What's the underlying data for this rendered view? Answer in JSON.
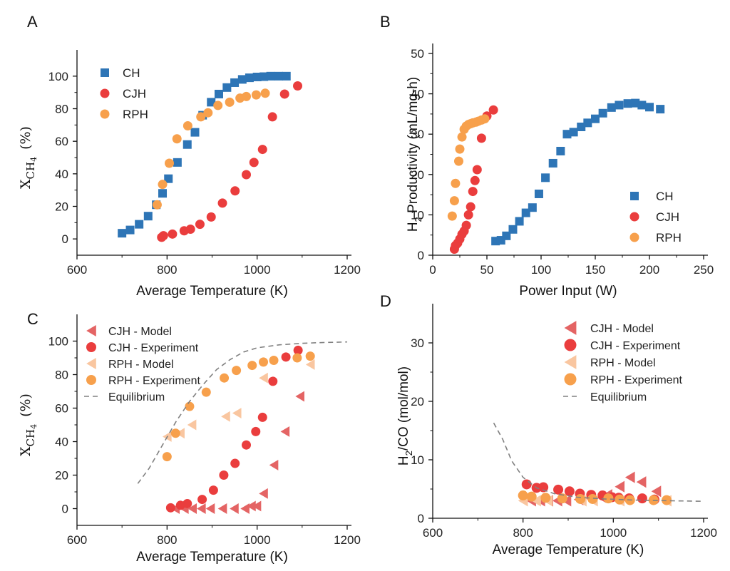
{
  "colors": {
    "CH": "#2e75b6",
    "CJH": "#ea3d3d",
    "RPH": "#f7a04c",
    "CJH_model": "#e46464",
    "RPH_model": "#f9c6a0",
    "equilibrium": "#808080"
  },
  "chart_data": [
    {
      "panel": "A",
      "type": "scatter",
      "xlabel": "Average Temperature (K)",
      "ylabel": "X",
      "ylabel_sub": "CH",
      "ylabel_sub2": "4",
      "ylabel_unit": "(%)",
      "xlim": [
        600,
        1200
      ],
      "ylim": [
        -10,
        110
      ],
      "xticks": [
        "600",
        "800",
        "1000",
        "1200"
      ],
      "yticks": [
        "0",
        "20",
        "40",
        "60",
        "80",
        "100"
      ],
      "legend_pos": "top-left",
      "series": [
        {
          "name": "CH",
          "marker": "square",
          "color": "CH",
          "points": [
            [
              700,
              3.5
            ],
            [
              718,
              5.5
            ],
            [
              738,
              9
            ],
            [
              758,
              14
            ],
            [
              776,
              21
            ],
            [
              790,
              28
            ],
            [
              803,
              37
            ],
            [
              823,
              47
            ],
            [
              845,
              58
            ],
            [
              862,
              65.5
            ],
            [
              879,
              76
            ],
            [
              898,
              84
            ],
            [
              915,
              89
            ],
            [
              933,
              93
            ],
            [
              950,
              96
            ],
            [
              967,
              98
            ],
            [
              983,
              99
            ],
            [
              1000,
              99.5
            ],
            [
              1015,
              99.7
            ],
            [
              1030,
              100
            ],
            [
              1048,
              100
            ],
            [
              1065,
              100
            ]
          ]
        },
        {
          "name": "CJH",
          "marker": "circle",
          "color": "CJH",
          "points": [
            [
              788,
              1
            ],
            [
              792,
              2
            ],
            [
              812,
              3
            ],
            [
              838,
              5
            ],
            [
              852,
              6
            ],
            [
              873,
              9
            ],
            [
              898,
              13.5
            ],
            [
              923,
              22
            ],
            [
              951,
              29.5
            ],
            [
              976,
              39.5
            ],
            [
              993,
              47
            ],
            [
              1012,
              55
            ],
            [
              1034,
              75
            ],
            [
              1061,
              89
            ],
            [
              1090,
              94
            ]
          ]
        },
        {
          "name": "RPH",
          "marker": "circle",
          "color": "RPH",
          "points": [
            [
              778,
              21
            ],
            [
              790,
              33.5
            ],
            [
              805,
              46.5
            ],
            [
              822,
              61.5
            ],
            [
              846,
              69.5
            ],
            [
              875,
              75
            ],
            [
              891,
              77.5
            ],
            [
              913,
              82
            ],
            [
              939,
              84
            ],
            [
              962,
              86.5
            ],
            [
              976,
              87.5
            ],
            [
              998,
              88.5
            ],
            [
              1018,
              89.5
            ]
          ]
        }
      ]
    },
    {
      "panel": "B",
      "type": "scatter",
      "xlabel": "Power Input (W)",
      "ylabel": "H",
      "ylabel_sub": "2",
      "ylabel_rest": " Productivity (mL/mg-h)",
      "xlim": [
        0,
        250
      ],
      "ylim": [
        0,
        50
      ],
      "xticks": [
        "0",
        "50",
        "100",
        "150",
        "200",
        "250"
      ],
      "yticks": [
        "0",
        "10",
        "20",
        "30",
        "40",
        "50"
      ],
      "legend_pos": "bottom-right",
      "series": [
        {
          "name": "CH",
          "marker": "square",
          "color": "CH",
          "points": [
            [
              58,
              3.5
            ],
            [
              63,
              3.7
            ],
            [
              68,
              4.8
            ],
            [
              74,
              6.4
            ],
            [
              80,
              8.4
            ],
            [
              86,
              10.5
            ],
            [
              92,
              11.8
            ],
            [
              98,
              15.2
            ],
            [
              104,
              19.2
            ],
            [
              111,
              22.8
            ],
            [
              118,
              25.8
            ],
            [
              124,
              30
            ],
            [
              130,
              30.5
            ],
            [
              137,
              31.8
            ],
            [
              143,
              32.8
            ],
            [
              150,
              33.8
            ],
            [
              157,
              35.2
            ],
            [
              165,
              36.6
            ],
            [
              172,
              37.2
            ],
            [
              180,
              37.6
            ],
            [
              187,
              37.7
            ],
            [
              193,
              37.2
            ],
            [
              200,
              36.7
            ],
            [
              210,
              36.2
            ]
          ]
        },
        {
          "name": "CJH",
          "marker": "circle",
          "color": "CJH",
          "points": [
            [
              20,
              1.5
            ],
            [
              21,
              2.4
            ],
            [
              23,
              3
            ],
            [
              25,
              4
            ],
            [
              27,
              5.2
            ],
            [
              29,
              6
            ],
            [
              31,
              7.4
            ],
            [
              33,
              10
            ],
            [
              35,
              12
            ],
            [
              37,
              15.8
            ],
            [
              39,
              18.5
            ],
            [
              41,
              21.2
            ],
            [
              45,
              29
            ],
            [
              50,
              34.5
            ],
            [
              56,
              36
            ]
          ]
        },
        {
          "name": "RPH",
          "marker": "circle",
          "color": "RPH",
          "points": [
            [
              18,
              9.7
            ],
            [
              20,
              13.5
            ],
            [
              21,
              17.8
            ],
            [
              24,
              23.3
            ],
            [
              25,
              26.3
            ],
            [
              27,
              29.3
            ],
            [
              29,
              31.2
            ],
            [
              31,
              32
            ],
            [
              33,
              32.4
            ],
            [
              35,
              32.6
            ],
            [
              37,
              32.8
            ],
            [
              40,
              33
            ],
            [
              42,
              33.2
            ],
            [
              45,
              33.5
            ],
            [
              48,
              33.8
            ]
          ]
        }
      ]
    },
    {
      "panel": "C",
      "type": "scatter",
      "xlabel": "Average Temperature (K)",
      "ylabel": "X",
      "ylabel_sub": "CH",
      "ylabel_sub2": "4",
      "ylabel_unit": "(%)",
      "xlim": [
        600,
        1200
      ],
      "ylim": [
        -10,
        110
      ],
      "xticks": [
        "600",
        "800",
        "1000",
        "1200"
      ],
      "yticks": [
        "0",
        "20",
        "40",
        "60",
        "80",
        "100"
      ],
      "legend_pos": "top-left",
      "series": [
        {
          "name": "CJH - Model",
          "marker": "triangle-left",
          "color": "CJH_model",
          "points": [
            [
              818,
              0
            ],
            [
              838,
              0
            ],
            [
              856,
              0
            ],
            [
              876,
              0
            ],
            [
              896,
              0
            ],
            [
              923,
              0
            ],
            [
              949,
              0
            ],
            [
              973,
              0
            ],
            [
              987,
              1.5
            ],
            [
              999,
              1.5
            ],
            [
              1014,
              9
            ],
            [
              1037,
              26
            ],
            [
              1062,
              46
            ],
            [
              1095,
              67
            ]
          ]
        },
        {
          "name": "CJH - Experiment",
          "marker": "circle",
          "color": "CJH",
          "points": [
            [
              808,
              0.5
            ],
            [
              830,
              2
            ],
            [
              845,
              3
            ],
            [
              878,
              5.5
            ],
            [
              903,
              11
            ],
            [
              926,
              20
            ],
            [
              951,
              27
            ],
            [
              976,
              38
            ],
            [
              997,
              46
            ],
            [
              1012,
              54.5
            ],
            [
              1035,
              76
            ],
            [
              1064,
              90.5
            ],
            [
              1091,
              94.5
            ]
          ]
        },
        {
          "name": "RPH - Model",
          "marker": "triangle-left",
          "color": "RPH_model",
          "points": [
            [
              800,
              43
            ],
            [
              829,
              45
            ],
            [
              855,
              50
            ],
            [
              930,
              55
            ],
            [
              955,
              57
            ],
            [
              1014,
              78
            ],
            [
              1118,
              86
            ]
          ]
        },
        {
          "name": "RPH - Experiment",
          "marker": "circle",
          "color": "RPH",
          "points": [
            [
              800,
              31
            ],
            [
              819,
              45
            ],
            [
              850,
              61
            ],
            [
              887,
              69.5
            ],
            [
              927,
              78
            ],
            [
              954,
              82.5
            ],
            [
              989,
              85.5
            ],
            [
              1014,
              87.5
            ],
            [
              1037,
              88.5
            ],
            [
              1089,
              90
            ],
            [
              1118,
              91
            ]
          ]
        },
        {
          "name": "Equilibrium",
          "marker": "dashed-line",
          "color": "equilibrium",
          "points": [
            [
              735,
              15
            ],
            [
              760,
              24
            ],
            [
              790,
              38
            ],
            [
              820,
              52
            ],
            [
              850,
              64
            ],
            [
              880,
              74
            ],
            [
              910,
              83
            ],
            [
              940,
              89
            ],
            [
              970,
              93.5
            ],
            [
              1000,
              96
            ],
            [
              1050,
              97.8
            ],
            [
              1100,
              98.7
            ],
            [
              1150,
              99.2
            ],
            [
              1200,
              99.5
            ]
          ]
        }
      ]
    },
    {
      "panel": "D",
      "type": "scatter",
      "xlabel": "Average Temperature (K)",
      "ylabel": "H",
      "ylabel_sub": "2",
      "ylabel_rest": "/CO (mol/mol)",
      "xlim": [
        600,
        1200
      ],
      "ylim": [
        0,
        35
      ],
      "xticks": [
        "600",
        "800",
        "1000",
        "1200"
      ],
      "yticks": [
        "0",
        "10",
        "20",
        "30"
      ],
      "legend_pos": "top-right",
      "series": [
        {
          "name": "CJH - Model",
          "marker": "triangle-left",
          "color": "CJH_model",
          "points": [
            [
              818,
              3
            ],
            [
              838,
              3
            ],
            [
              856,
              3
            ],
            [
              876,
              3
            ],
            [
              896,
              3
            ],
            [
              923,
              3.2
            ],
            [
              949,
              3.4
            ],
            [
              973,
              3.6
            ],
            [
              987,
              4
            ],
            [
              1014,
              5.4
            ],
            [
              1037,
              7
            ],
            [
              1062,
              6.2
            ],
            [
              1095,
              4.6
            ]
          ]
        },
        {
          "name": "CJH - Experiment",
          "marker": "circle",
          "color": "CJH",
          "points": [
            [
              808,
              5.8
            ],
            [
              830,
              5.2
            ],
            [
              845,
              5.3
            ],
            [
              878,
              4.9
            ],
            [
              903,
              4.6
            ],
            [
              926,
              4.2
            ],
            [
              951,
              4
            ],
            [
              976,
              3.9
            ],
            [
              997,
              3.6
            ],
            [
              1012,
              3.5
            ],
            [
              1035,
              3.4
            ],
            [
              1064,
              3.4
            ],
            [
              1091,
              3.2
            ]
          ]
        },
        {
          "name": "RPH - Model",
          "marker": "triangle-left",
          "color": "RPH_model",
          "points": [
            [
              800,
              3
            ],
            [
              829,
              3
            ],
            [
              855,
              3
            ],
            [
              930,
              3
            ],
            [
              955,
              3
            ],
            [
              1014,
              3
            ],
            [
              1118,
              3
            ]
          ]
        },
        {
          "name": "RPH - Experiment",
          "marker": "circle",
          "color": "RPH",
          "points": [
            [
              800,
              3.9
            ],
            [
              819,
              3.7
            ],
            [
              850,
              3.5
            ],
            [
              887,
              3.4
            ],
            [
              927,
              3.3
            ],
            [
              954,
              3.3
            ],
            [
              989,
              3.4
            ],
            [
              1014,
              3.2
            ],
            [
              1037,
              3.1
            ],
            [
              1089,
              3.1
            ],
            [
              1118,
              3.1
            ]
          ]
        },
        {
          "name": "Equilibrium",
          "marker": "dashed-line",
          "color": "equilibrium",
          "points": [
            [
              735,
              16.3
            ],
            [
              755,
              13.5
            ],
            [
              775,
              9.8
            ],
            [
              800,
              7
            ],
            [
              830,
              5.2
            ],
            [
              870,
              4.2
            ],
            [
              920,
              3.6
            ],
            [
              980,
              3.3
            ],
            [
              1050,
              3.1
            ],
            [
              1120,
              3
            ],
            [
              1200,
              2.9
            ]
          ]
        }
      ]
    }
  ]
}
